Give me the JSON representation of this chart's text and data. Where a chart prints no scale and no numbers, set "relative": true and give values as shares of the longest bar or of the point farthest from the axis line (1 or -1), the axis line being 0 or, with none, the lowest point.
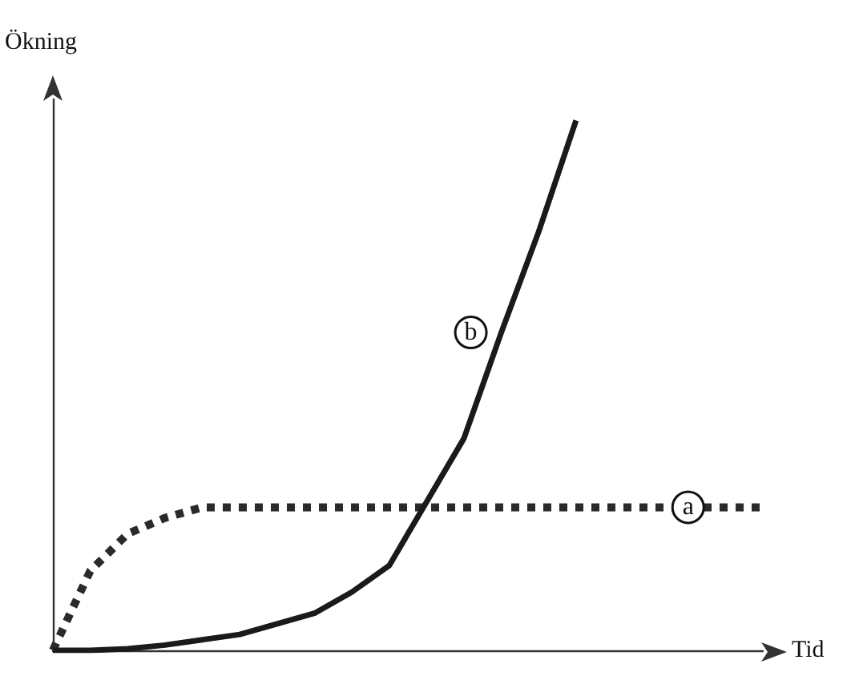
{
  "chart_data": {
    "type": "line",
    "xlabel": "Tid",
    "ylabel": "Ökning",
    "relative": true,
    "grid": false,
    "legend": false,
    "marker": "none",
    "categories": [
      null,
      null,
      null,
      null,
      null,
      null,
      null,
      null,
      null,
      null,
      null,
      null,
      null,
      null,
      null,
      null,
      null,
      null,
      null,
      null
    ],
    "series": [
      {
        "name": "a",
        "color": "#2a2a2a",
        "line_style": "dotted",
        "values": [
          0,
          0.15,
          0.22,
          0.25,
          0.27,
          0.27,
          0.27,
          0.27,
          0.27,
          0.27,
          0.27,
          0.27,
          0.27,
          0.27,
          0.27,
          0.27,
          0.27,
          0.27,
          0.27,
          0.27
        ]
      },
      {
        "name": "b",
        "color": "#1a1a1a",
        "line_style": "solid",
        "values": [
          0,
          0,
          0.003,
          0.01,
          0.02,
          0.03,
          0.05,
          0.07,
          0.11,
          0.16,
          0.28,
          0.4,
          0.6,
          0.79,
          1,
          null,
          null,
          null,
          null,
          null
        ]
      }
    ]
  }
}
